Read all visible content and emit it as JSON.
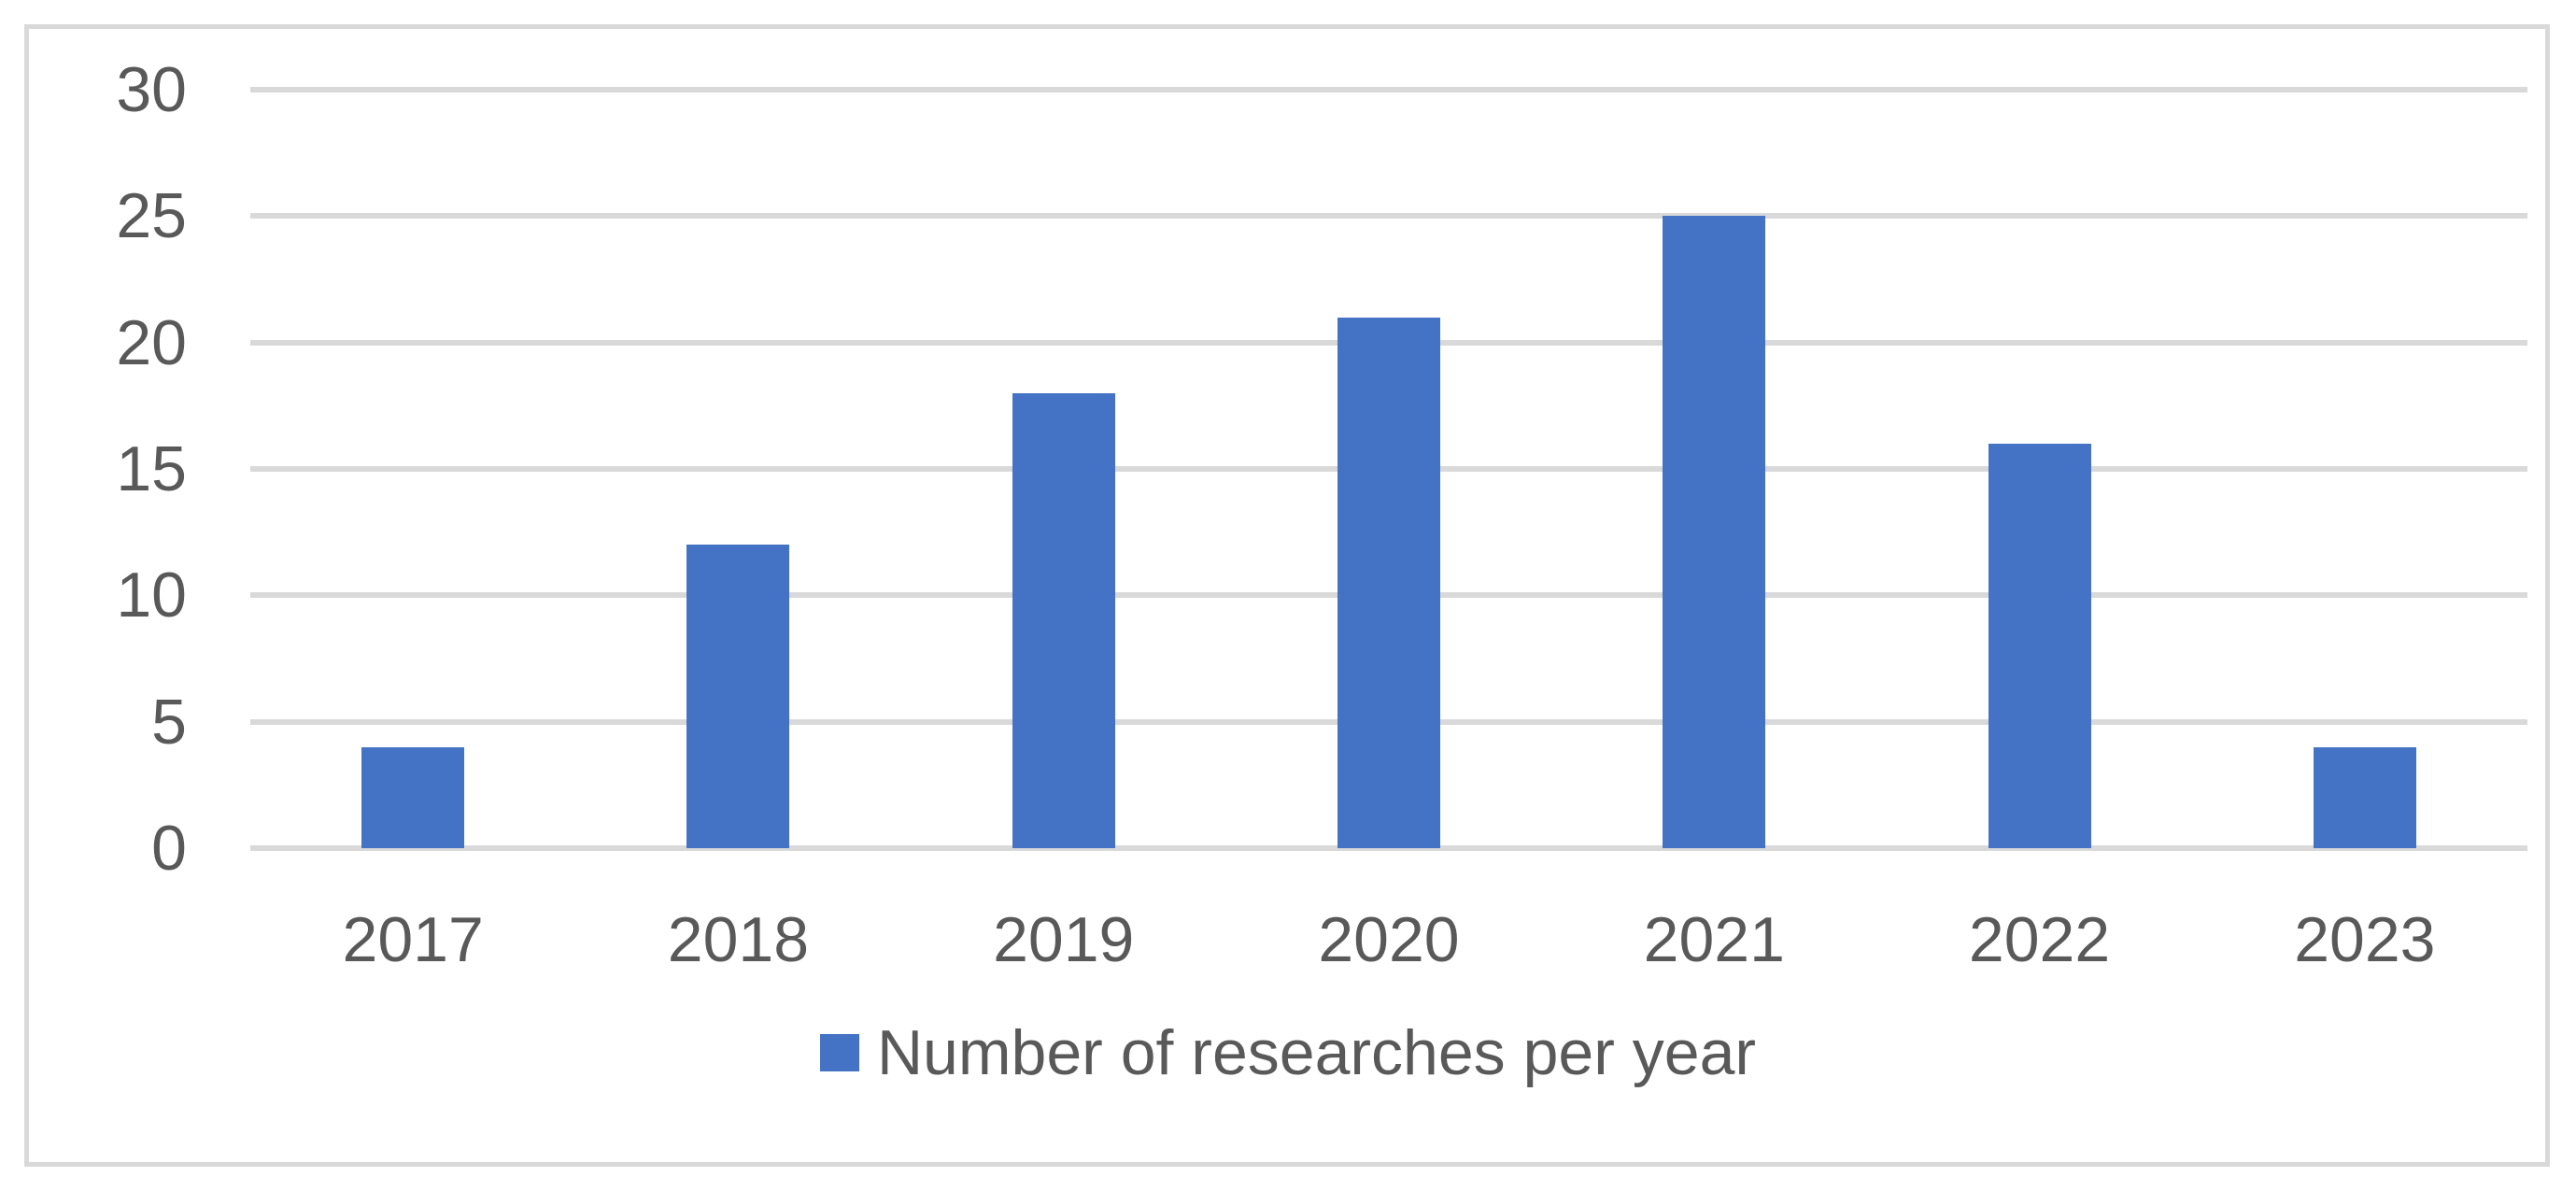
{
  "chart_data": {
    "type": "bar",
    "title": "",
    "xlabel": "",
    "ylabel": "",
    "categories": [
      "2017",
      "2018",
      "2019",
      "2020",
      "2021",
      "2022",
      "2023"
    ],
    "series": [
      {
        "name": "Number of researches per year",
        "values": [
          4,
          12,
          18,
          21,
          25,
          16,
          4
        ]
      }
    ],
    "ylim": [
      0,
      30
    ],
    "yticks": [
      0,
      5,
      10,
      15,
      20,
      25,
      30
    ],
    "grid": "horizontal",
    "legend_position": "bottom",
    "colors": {
      "bar": "#4472c4",
      "gridline": "#d9d9d9",
      "frame_border": "#d9d9d9",
      "axis_text": "#595959",
      "background": "#ffffff"
    }
  }
}
